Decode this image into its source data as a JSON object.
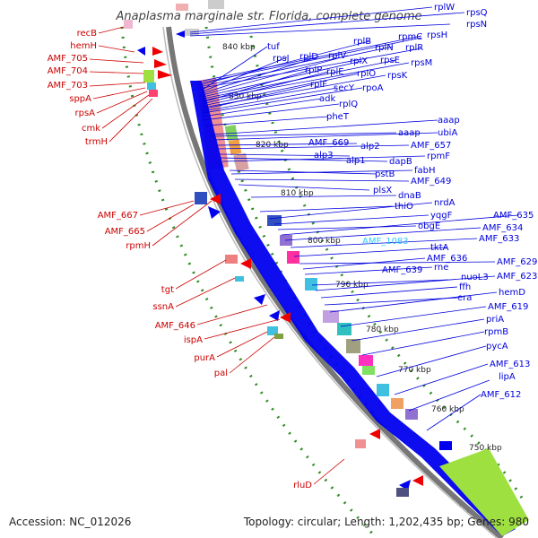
{
  "title": "Anaplasma marginale str. Florida, complete genome",
  "footer": {
    "accession": "Accession: NC_012026",
    "topology": "Topology: circular; Length: 1,202,435 bp; Genes: 980"
  },
  "ticks": [
    "840 kbp",
    "830 kbp",
    "820 kbp",
    "810 kbp",
    "800 kbp",
    "790 kbp",
    "780 kbp",
    "770 kbp",
    "760 kbp",
    "750 kbp"
  ],
  "left_labels": [
    "recB",
    "hemH",
    "AMF_705",
    "AMF_704",
    "AMF_703",
    "sppA",
    "rpsA",
    "cmk",
    "trmH",
    "AMF_667",
    "AMF_665",
    "rpmH",
    "tgt",
    "ssnA",
    "AMF_646",
    "ispA",
    "purA",
    "pal",
    "rluD"
  ],
  "right_labels": [
    "rplW",
    "rpsQ",
    "rpsN",
    "rpmC",
    "rpsH",
    "rplB",
    "rplN",
    "rplR",
    "tuf",
    "rpsJ",
    "rplD",
    "rplV",
    "rplX",
    "rpsE",
    "rpsM",
    "rplP",
    "rplE",
    "rplO",
    "rpsK",
    "rplF",
    "secY",
    "rpoA",
    "adk",
    "rplQ",
    "pheT",
    "aaap",
    "aaap",
    "ubiA",
    "AMF_669",
    "alp2",
    "AMF_657",
    "alp3",
    "alp1",
    "dapB",
    "rpmF",
    "pstB",
    "fabH",
    "AMF_649",
    "plsX",
    "dnaB",
    "thiO",
    "nrdA",
    "yqgF",
    "obgE",
    "AMF_635",
    "AMF_634",
    "AMF_1083",
    "AMF_633",
    "tktA",
    "AMF_629",
    "AMF_636",
    "rne",
    "AMF_639",
    "nuoL3",
    "AMF_623",
    "ffh",
    "era",
    "hemD",
    "AMF_619",
    "priA",
    "rpmB",
    "pycA",
    "AMF_613",
    "lipA",
    "AMF_612"
  ],
  "colors": {
    "left_label": "#cc0000",
    "right_label": "#0000dd",
    "highlight_label": "#33c9ff",
    "forward_cds": "#0000ee",
    "reverse_cds": "#ee0000",
    "backbone": "#777777",
    "gc_skew_dots": "#2e8b22"
  }
}
